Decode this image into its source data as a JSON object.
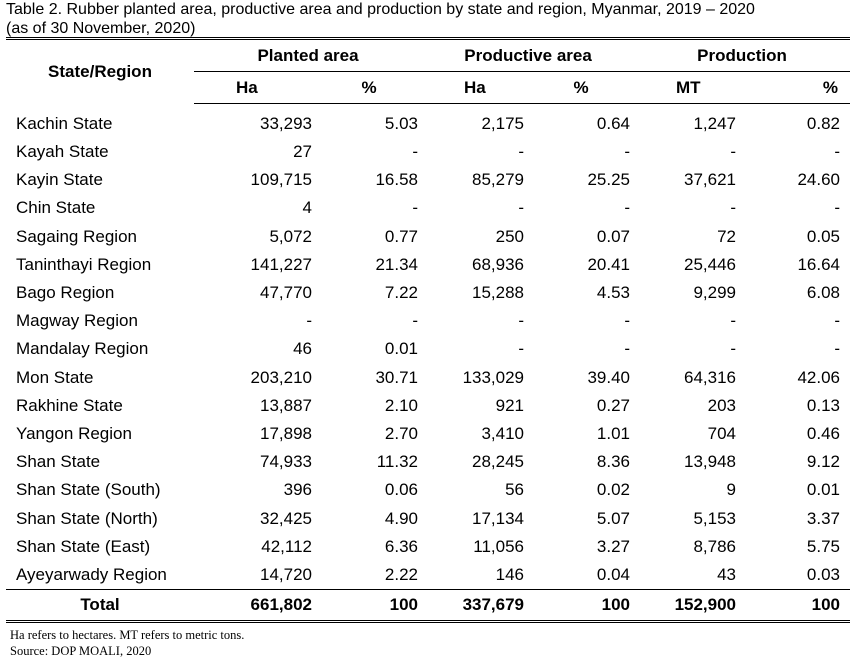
{
  "caption": {
    "line1": "Table 2. Rubber planted area, productive area and production by state and region, Myanmar, 2019 – 2020",
    "line2": "(as of 30 November, 2020)"
  },
  "header": {
    "region_label": "State/Region",
    "groups": [
      "Planted area",
      "Productive area",
      "Production"
    ],
    "units": [
      "Ha",
      "%",
      "Ha",
      "%",
      "MT",
      "%"
    ]
  },
  "rows": [
    {
      "name": "Kachin State",
      "values": [
        "33,293",
        "5.03",
        "2,175",
        "0.64",
        "1,247",
        "0.82"
      ]
    },
    {
      "name": "Kayah State",
      "values": [
        "27",
        "-",
        "-",
        "-",
        "-",
        "-"
      ]
    },
    {
      "name": "Kayin State",
      "values": [
        "109,715",
        "16.58",
        "85,279",
        "25.25",
        "37,621",
        "24.60"
      ]
    },
    {
      "name": "Chin State",
      "values": [
        "4",
        "-",
        "-",
        "-",
        "-",
        "-"
      ]
    },
    {
      "name": "Sagaing Region",
      "values": [
        "5,072",
        "0.77",
        "250",
        "0.07",
        "72",
        "0.05"
      ]
    },
    {
      "name": "Taninthayi Region",
      "values": [
        "141,227",
        "21.34",
        "68,936",
        "20.41",
        "25,446",
        "16.64"
      ]
    },
    {
      "name": "Bago Region",
      "values": [
        "47,770",
        "7.22",
        "15,288",
        "4.53",
        "9,299",
        "6.08"
      ]
    },
    {
      "name": "Magway Region",
      "values": [
        "-",
        "-",
        "-",
        "-",
        "-",
        "-"
      ]
    },
    {
      "name": "Mandalay Region",
      "values": [
        "46",
        "0.01",
        "-",
        "-",
        "-",
        "-"
      ]
    },
    {
      "name": "Mon State",
      "values": [
        "203,210",
        "30.71",
        "133,029",
        "39.40",
        "64,316",
        "42.06"
      ]
    },
    {
      "name": "Rakhine State",
      "values": [
        "13,887",
        "2.10",
        "921",
        "0.27",
        "203",
        "0.13"
      ]
    },
    {
      "name": "Yangon Region",
      "values": [
        "17,898",
        "2.70",
        "3,410",
        "1.01",
        "704",
        "0.46"
      ]
    },
    {
      "name": "Shan State",
      "values": [
        "74,933",
        "11.32",
        "28,245",
        "8.36",
        "13,948",
        "9.12"
      ]
    },
    {
      "name": "Shan State (South)",
      "values": [
        "396",
        "0.06",
        "56",
        "0.02",
        "9",
        "0.01"
      ]
    },
    {
      "name": "Shan State (North)",
      "values": [
        "32,425",
        "4.90",
        "17,134",
        "5.07",
        "5,153",
        "3.37"
      ]
    },
    {
      "name": "Shan State (East)",
      "values": [
        "42,112",
        "6.36",
        "11,056",
        "3.27",
        "8,786",
        "5.75"
      ]
    },
    {
      "name": "Ayeyarwady Region",
      "values": [
        "14,720",
        "2.22",
        "146",
        "0.04",
        "43",
        "0.03"
      ]
    }
  ],
  "total": {
    "name": "Total",
    "values": [
      "661,802",
      "100",
      "337,679",
      "100",
      "152,900",
      "100"
    ]
  },
  "notes": {
    "line1": "Ha refers to hectares. MT refers to metric tons.",
    "line2": "Source: DOP MOALI, 2020"
  }
}
